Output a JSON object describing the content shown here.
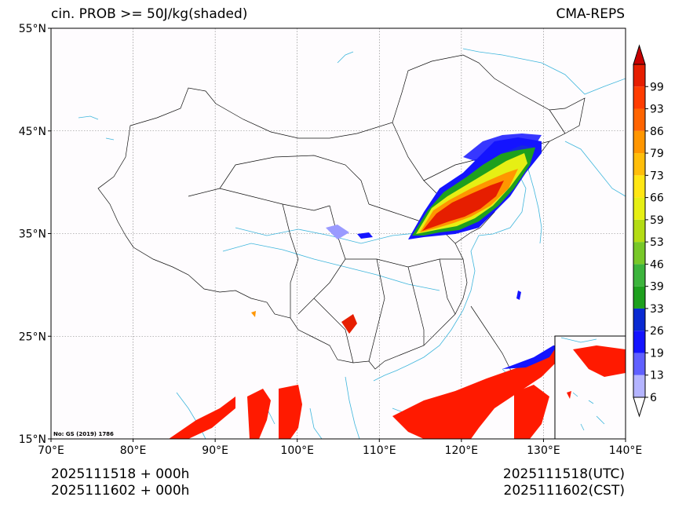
{
  "header": {
    "title": "cin. PROB >= 50J/kg(shaded)",
    "model": "CMA-REPS"
  },
  "axes": {
    "lat_labels": [
      "55°N",
      "45°N",
      "35°N",
      "25°N",
      "15°N"
    ],
    "lon_labels": [
      "70°E",
      "80°E",
      "90°E",
      "100°E",
      "110°E",
      "120°E",
      "130°E",
      "140°E"
    ],
    "lat_range": [
      15,
      55
    ],
    "lon_range": [
      70,
      140
    ]
  },
  "colorbar": {
    "levels": [
      "6",
      "13",
      "19",
      "26",
      "33",
      "39",
      "46",
      "53",
      "59",
      "66",
      "73",
      "79",
      "86",
      "93",
      "99"
    ],
    "colors": [
      "#ffffff",
      "#b4b4ff",
      "#6060ff",
      "#1414ff",
      "#0a2ad2",
      "#1ea01e",
      "#3cb43c",
      "#78c828",
      "#b4dc14",
      "#e6ef14",
      "#ffe614",
      "#ffbe0a",
      "#ff9600",
      "#ff6400",
      "#ff3c00",
      "#e61e00",
      "#c80000"
    ]
  },
  "map_note": "No: GS (2019) 1786",
  "footer": {
    "init_utc": "2025111518  +  000h",
    "init_cst": "2025111602  +  000h",
    "valid_utc": "2025111518(UTC)",
    "valid_cst": "2025111602(CST)"
  }
}
